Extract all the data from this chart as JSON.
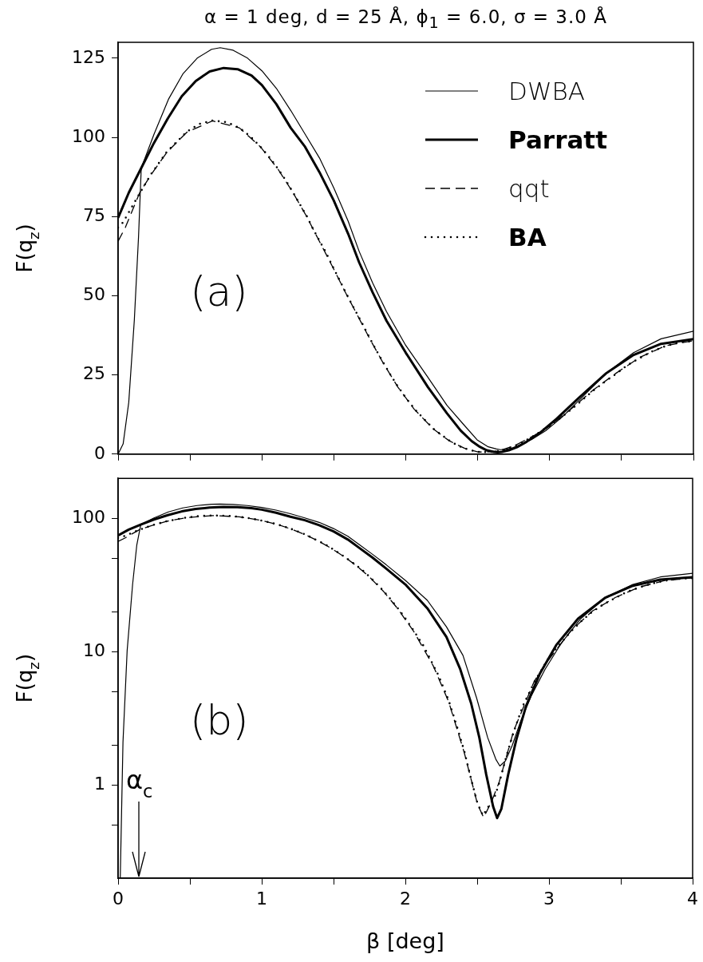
{
  "chart_data": [
    {
      "type": "line",
      "title": "α = 1 deg, d = 25 Å, ϕ$_{1}$ = 6.0, σ = 3.0 Å",
      "ylabel": "F(q$_{z}$)",
      "xlim": [
        0,
        4
      ],
      "xticks": [
        0,
        {
          "value": 0.5,
          "label": null
        },
        1,
        {
          "value": 1.5,
          "label": null
        },
        2,
        {
          "value": 2.5,
          "label": null
        },
        3,
        {
          "value": 3.5,
          "label": null
        },
        4
      ],
      "ylim": [
        0,
        130
      ],
      "yticks": [
        0,
        25,
        50,
        75,
        100,
        125
      ],
      "tick_labels": "y",
      "legend": "top right",
      "annotations": [
        "(a)"
      ],
      "series": [
        {
          "name": "DWBA",
          "color": "#000000",
          "line_style": "solid",
          "x": [
            0,
            0.035,
            0.074,
            0.113,
            0.142,
            0.161,
            0.25,
            0.35,
            0.45,
            0.55,
            0.65,
            0.71,
            0.8,
            0.9,
            1.0,
            1.1,
            1.2,
            1.3,
            1.4,
            1.5,
            1.6,
            1.676,
            1.77,
            1.866,
            2.0,
            2.153,
            2.286,
            2.401,
            2.496,
            2.573,
            2.63,
            2.658,
            2.697,
            2.744,
            2.802,
            2.878,
            2.973,
            3.088,
            3.221,
            3.393,
            3.584,
            3.775,
            4.0
          ],
          "values": [
            0,
            3.2,
            16.3,
            42.4,
            68.5,
            90.3,
            101,
            112,
            120,
            125,
            127.8,
            128.3,
            127.5,
            125,
            121,
            115.5,
            108.5,
            101,
            93.5,
            84,
            73.5,
            64,
            54,
            45,
            34.3,
            24.3,
            15.4,
            9.4,
            4.5,
            2.3,
            1.6,
            1.4,
            1.5,
            2,
            3,
            4.7,
            7.4,
            11.7,
            17.7,
            25.5,
            32,
            36.4,
            38.8
          ]
        },
        {
          "name": "Parratt",
          "color": "#000000",
          "line_style": "solid",
          "x": [
            0,
            0.074,
            0.161,
            0.249,
            0.346,
            0.443,
            0.54,
            0.637,
            0.734,
            0.831,
            0.928,
            1.0,
            1.1,
            1.2,
            1.3,
            1.4,
            1.5,
            1.6,
            1.676,
            1.77,
            1.866,
            2.0,
            2.153,
            2.286,
            2.382,
            2.458,
            2.515,
            2.563,
            2.611,
            2.639,
            2.668,
            2.716,
            2.773,
            2.84,
            2.935,
            3.05,
            3.202,
            3.393,
            3.584,
            3.775,
            4.0
          ],
          "values": [
            74.6,
            82.5,
            90.3,
            98.2,
            106,
            113,
            117.8,
            120.8,
            121.9,
            121.5,
            119.5,
            116.5,
            110.5,
            103,
            97,
            89,
            80,
            69.5,
            60.5,
            51,
            42.1,
            32,
            21.2,
            12.9,
            7.4,
            4.1,
            2.3,
            1.2,
            0.7,
            0.6,
            0.7,
            1.2,
            2.2,
            3.9,
            6.8,
            11.2,
            17.7,
            25.5,
            31.3,
            34.8,
            36.3
          ]
        },
        {
          "name": "qqt",
          "color": "#000000",
          "line_style": "dashed",
          "x": [
            0,
            0.05,
            0.1,
            0.15,
            0.229,
            0.34,
            0.478,
            0.656,
            0.843,
            0.99,
            1.111,
            1.214,
            1.311,
            1.398,
            1.487,
            1.573,
            1.662,
            1.751,
            1.845,
            1.946,
            2.06,
            2.195,
            2.302,
            2.41,
            2.502,
            2.545,
            2.6,
            2.653,
            2.754,
            2.897,
            2.997,
            3.153,
            3.305,
            3.461,
            3.626,
            3.805,
            4.0
          ],
          "values": [
            67.2,
            71.5,
            77,
            82.5,
            88.2,
            95.3,
            101.6,
            105.2,
            103,
            97,
            90,
            82.7,
            75,
            67.3,
            59.5,
            51.7,
            44,
            36.3,
            28.6,
            21.1,
            14.1,
            7.8,
            4.2,
            1.8,
            0.7,
            0.6,
            0.8,
            1.1,
            2.6,
            6,
            8.7,
            14.4,
            20.3,
            25.5,
            30.5,
            34.2,
            35.8
          ]
        },
        {
          "name": "BA",
          "color": "#000000",
          "line_style": "dotted",
          "x": [
            0,
            0.035,
            0.132,
            0.229,
            0.34,
            0.478,
            0.563,
            0.656,
            0.755,
            0.843,
            0.922,
            0.99,
            1.054,
            1.111,
            1.165,
            1.214,
            1.262,
            1.311,
            1.353,
            1.398,
            1.445,
            1.487,
            1.53,
            1.573,
            1.616,
            1.662,
            1.707,
            1.751,
            1.796,
            1.845,
            1.893,
            1.946,
            2.0,
            2.06,
            2.126,
            2.195,
            2.229,
            2.302,
            2.357,
            2.41,
            2.454,
            2.502,
            2.54,
            2.624,
            2.653,
            2.7,
            2.754,
            2.817,
            2.897,
            2.992,
            3.075,
            3.153,
            3.231,
            3.305,
            3.383,
            3.461,
            3.542,
            3.626,
            3.712,
            3.805,
            3.907,
            4.0
          ],
          "values": [
            71.5,
            73.2,
            80.9,
            88.4,
            95.5,
            101.8,
            104.2,
            105.3,
            104.8,
            103,
            100.2,
            97,
            93.6,
            90.1,
            86.5,
            82.8,
            79,
            75.2,
            71.3,
            67.5,
            63.7,
            59.7,
            55.8,
            51.9,
            48.1,
            44.2,
            40.4,
            36.5,
            32.7,
            28.8,
            25.1,
            21.3,
            17.8,
            14.3,
            11.1,
            7.9,
            6.7,
            4.3,
            2.8,
            1.8,
            1.2,
            0.7,
            0.6,
            0.8,
            1,
            1.6,
            2.5,
            3.9,
            5.9,
            8.8,
            11.4,
            14.2,
            17.2,
            20.1,
            22.8,
            25.3,
            28.1,
            30.3,
            32.4,
            34.1,
            35.3,
            35.7
          ]
        }
      ]
    },
    {
      "type": "line",
      "xlabel": "β [deg]",
      "ylabel": "F(q$_{z}$)",
      "log": "y",
      "xlim": [
        0,
        4
      ],
      "xticks": [
        0,
        {
          "value": 0.5,
          "label": null
        },
        1,
        {
          "value": 1.5,
          "label": null
        },
        2,
        {
          "value": 2.5,
          "label": null
        },
        3,
        {
          "value": 3.5,
          "label": null
        },
        4
      ],
      "ylim": [
        0.2,
        200
      ],
      "yticks": [
        {
          "value": 0.5,
          "label": null
        },
        1,
        {
          "value": 2,
          "label": null
        },
        {
          "value": 5,
          "label": null
        },
        10,
        {
          "value": 20,
          "label": null
        },
        {
          "value": 50,
          "label": null
        },
        100
      ],
      "annotations": [
        "(b)",
        "α$_{c}$"
      ],
      "series": [
        {
          "color": "#000000",
          "line_style": "solid",
          "x": [
            0.015,
            0.034,
            0.063,
            0.101,
            0.13,
            0.158,
            0.25,
            0.35,
            0.45,
            0.55,
            0.65,
            0.71,
            0.8,
            0.9,
            1.0,
            1.1,
            1.2,
            1.3,
            1.4,
            1.5,
            1.6,
            1.676,
            1.77,
            1.866,
            2.0,
            2.153,
            2.286,
            2.401,
            2.496,
            2.573,
            2.63,
            2.658,
            2.697,
            2.744,
            2.802,
            2.878,
            2.973,
            3.088,
            3.221,
            3.393,
            3.584,
            3.775,
            4.0
          ],
          "values": [
            0.2,
            2.1,
            10.2,
            32,
            63,
            90,
            101,
            112,
            120,
            125,
            127.8,
            128.3,
            127.5,
            125,
            121,
            115.5,
            108.5,
            101,
            93.5,
            84,
            73.5,
            64,
            54,
            45,
            34.3,
            24.3,
            15.4,
            9.4,
            4.5,
            2.27,
            1.56,
            1.39,
            1.52,
            1.98,
            3.0,
            4.7,
            7.4,
            11.7,
            17.7,
            25.5,
            32,
            36.4,
            38.8
          ]
        },
        {
          "color": "#000000",
          "line_style": "solid",
          "x": [
            0,
            0.074,
            0.161,
            0.249,
            0.346,
            0.443,
            0.54,
            0.637,
            0.734,
            0.831,
            0.928,
            1.0,
            1.1,
            1.2,
            1.3,
            1.4,
            1.5,
            1.6,
            1.676,
            1.77,
            1.866,
            2.0,
            2.153,
            2.286,
            2.382,
            2.458,
            2.515,
            2.563,
            2.611,
            2.639,
            2.668,
            2.716,
            2.773,
            2.84,
            2.935,
            3.05,
            3.202,
            3.393,
            3.584,
            3.775,
            4.0
          ],
          "values": [
            74.6,
            82.5,
            90.3,
            98.2,
            106,
            113,
            117.8,
            120.8,
            121.9,
            121.5,
            119.5,
            116.5,
            110.5,
            103,
            97,
            89,
            80,
            69.5,
            60.5,
            51,
            42.1,
            32,
            21.2,
            12.9,
            7.4,
            4.1,
            2.27,
            1.2,
            0.69,
            0.565,
            0.66,
            1.2,
            2.2,
            3.9,
            6.8,
            11.2,
            17.7,
            25.5,
            31.3,
            34.8,
            36.3
          ]
        },
        {
          "color": "#000000",
          "line_style": "dashed",
          "x": [
            0,
            0.05,
            0.1,
            0.15,
            0.229,
            0.34,
            0.478,
            0.656,
            0.843,
            0.99,
            1.111,
            1.214,
            1.311,
            1.398,
            1.487,
            1.573,
            1.662,
            1.751,
            1.845,
            1.946,
            2.06,
            2.195,
            2.302,
            2.41,
            2.502,
            2.545,
            2.6,
            2.653,
            2.754,
            2.897,
            2.997,
            3.153,
            3.305,
            3.461,
            3.626,
            3.805,
            4.0
          ],
          "values": [
            67.2,
            71.5,
            77,
            82.5,
            88.2,
            95.3,
            101.6,
            105.2,
            103,
            97,
            90,
            82.7,
            75,
            67.3,
            59.5,
            51.7,
            44,
            36.3,
            28.6,
            21.1,
            14.1,
            7.8,
            4.2,
            1.75,
            0.72,
            0.57,
            0.75,
            1.05,
            2.55,
            6.0,
            8.7,
            14.4,
            20.3,
            25.5,
            30.5,
            34.2,
            35.8
          ]
        },
        {
          "color": "#000000",
          "line_style": "dotted",
          "x": [
            0,
            0.035,
            0.132,
            0.229,
            0.34,
            0.478,
            0.563,
            0.656,
            0.755,
            0.843,
            0.922,
            0.99,
            1.054,
            1.111,
            1.165,
            1.214,
            1.262,
            1.311,
            1.353,
            1.398,
            1.445,
            1.487,
            1.53,
            1.573,
            1.616,
            1.662,
            1.707,
            1.751,
            1.796,
            1.845,
            1.893,
            1.946,
            2.0,
            2.06,
            2.126,
            2.195,
            2.229,
            2.302,
            2.357,
            2.41,
            2.454,
            2.502,
            2.54,
            2.624,
            2.653,
            2.7,
            2.754,
            2.817,
            2.897,
            2.992,
            3.075,
            3.153,
            3.231,
            3.305,
            3.383,
            3.461,
            3.542,
            3.626,
            3.712,
            3.805,
            3.907,
            4.0
          ],
          "values": [
            71.5,
            73.2,
            80.9,
            88.4,
            95.5,
            101.8,
            104.2,
            105.3,
            104.8,
            103,
            100.2,
            97,
            93.6,
            90.1,
            86.5,
            82.8,
            79,
            75.2,
            71.3,
            67.5,
            63.7,
            59.7,
            55.8,
            51.9,
            48.1,
            44.2,
            40.4,
            36.5,
            32.7,
            28.8,
            25.1,
            21.3,
            17.8,
            14.3,
            11.1,
            7.9,
            6.7,
            4.3,
            2.8,
            1.8,
            1.15,
            0.73,
            0.59,
            0.83,
            1.03,
            1.6,
            2.5,
            3.9,
            5.9,
            8.8,
            11.4,
            14.2,
            17.2,
            20.1,
            22.8,
            25.3,
            28.1,
            30.3,
            32.4,
            34.1,
            35.3,
            35.7
          ]
        }
      ]
    }
  ]
}
